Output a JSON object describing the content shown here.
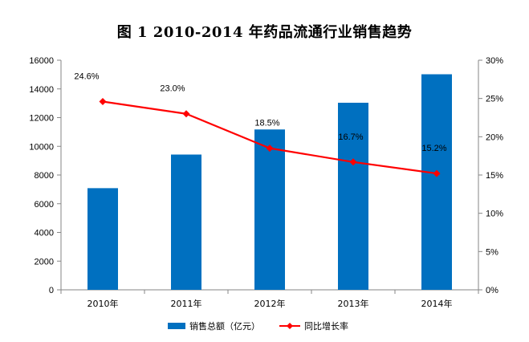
{
  "chart_data": {
    "type": "bar",
    "title": "图 1   2010-2014 年药品流通行业销售趋势",
    "categories": [
      "2010年",
      "2011年",
      "2012年",
      "2013年",
      "2014年"
    ],
    "series": [
      {
        "name": "销售总额（亿元）",
        "type": "bar",
        "axis": "left",
        "color": "#0070C0",
        "values": [
          7084,
          9426,
          11174,
          13036,
          15021
        ]
      },
      {
        "name": "同比增长率",
        "type": "line",
        "axis": "right",
        "color": "#FF0000",
        "values": [
          24.6,
          23.0,
          18.5,
          16.7,
          15.2
        ],
        "labels": [
          "24.6%",
          "23.0%",
          "18.5%",
          "16.7%",
          "15.2%"
        ]
      }
    ],
    "y_left": {
      "min": 0,
      "max": 16000,
      "ticks": [
        "0",
        "2000",
        "4000",
        "6000",
        "8000",
        "10000",
        "12000",
        "14000",
        "16000"
      ]
    },
    "y_right": {
      "min": 0,
      "max": 30,
      "ticks": [
        "0%",
        "5%",
        "10%",
        "15%",
        "20%",
        "25%",
        "30%"
      ]
    },
    "grid": false,
    "legend_position": "bottom"
  }
}
